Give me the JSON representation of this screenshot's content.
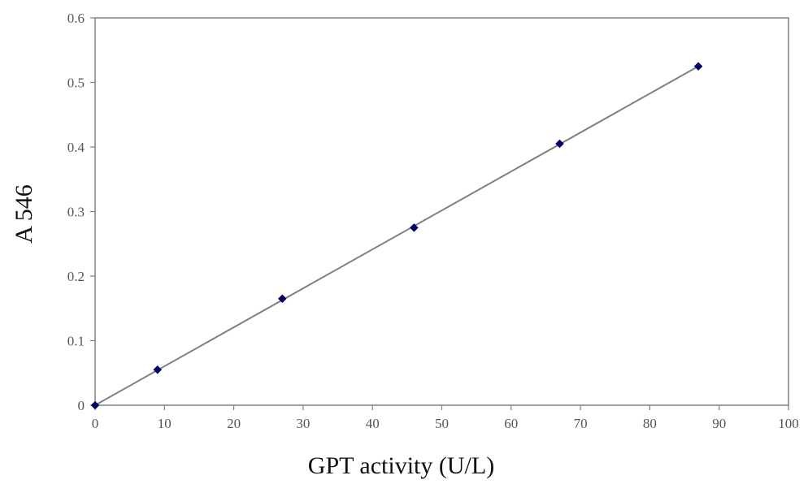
{
  "chart_data": {
    "type": "scatter",
    "title": "",
    "xlabel": "GPT activity (U/L)",
    "ylabel": "A 546",
    "xlim": [
      0,
      100
    ],
    "ylim": [
      0,
      0.6
    ],
    "x_ticks": [
      0,
      10,
      20,
      30,
      40,
      50,
      60,
      70,
      80,
      90,
      100
    ],
    "y_ticks": [
      0,
      0.1,
      0.2,
      0.3,
      0.4,
      0.5,
      0.6
    ],
    "x_tick_labels": [
      "0",
      "10",
      "20",
      "30",
      "40",
      "50",
      "60",
      "70",
      "80",
      "90",
      "100"
    ],
    "y_tick_labels": [
      "0",
      "0.1",
      "0.2",
      "0.3",
      "0.4",
      "0.5",
      "0.6"
    ],
    "grid": false,
    "legend": "none",
    "series": [
      {
        "x": [
          0,
          9,
          27,
          46,
          67,
          87
        ],
        "y": [
          0,
          0.055,
          0.165,
          0.275,
          0.405,
          0.525
        ],
        "marker": "diamond",
        "color": "#000066"
      }
    ],
    "trendline": {
      "type": "linear",
      "x": [
        0,
        87
      ],
      "y": [
        0,
        0.525
      ],
      "color": "#808080"
    },
    "colors": {
      "axis": "#808080",
      "tick_text": "#555555",
      "title_text": "#111111",
      "marker": "#000066",
      "line": "#808080"
    }
  }
}
